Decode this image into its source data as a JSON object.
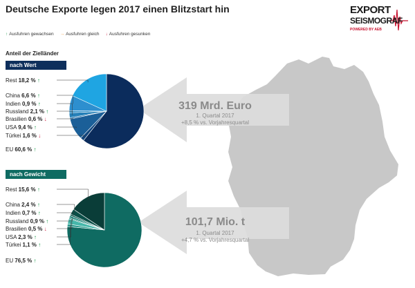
{
  "title": "Deutsche Exporte legen 2017 einen Blitzstart hin",
  "legend": [
    {
      "arrow": "↑",
      "kind": "up",
      "label": "Ausfuhren gewachsen"
    },
    {
      "arrow": "→",
      "kind": "flat",
      "label": "Ausfuhren gleich"
    },
    {
      "arrow": "↓",
      "kind": "down",
      "label": "Ausfuhren gesunken"
    }
  ],
  "section_title": "Anteil der Zielländer",
  "logo": {
    "line1": "EXPORT",
    "line2": "SEISMOGRAF",
    "line3": "POWERED BY AEB"
  },
  "colors": {
    "up": "#1a9a4a",
    "down": "#d0284a",
    "flat": "#f29a3a",
    "arrow": "#dcdcdc",
    "map": "#c8c8c8"
  },
  "chart_data": [
    {
      "type": "pie",
      "title": "nach Wert",
      "big_value": "319 Mrd. Euro",
      "period": "1. Quartal 2017",
      "change": "+8,5 % vs. Vorjahresquartal",
      "slices": [
        {
          "name": "EU",
          "value": 60.6,
          "display": "60,6 %",
          "trend": "up",
          "color": "#0b2c5c"
        },
        {
          "name": "Türkei",
          "value": 1.6,
          "display": "1,6 %",
          "trend": "down",
          "color": "#12457c"
        },
        {
          "name": "USA",
          "value": 9.4,
          "display": "9,4 %",
          "trend": "up",
          "color": "#1b5f98"
        },
        {
          "name": "Brasilien",
          "value": 0.6,
          "display": "0,6 %",
          "trend": "down",
          "color": "#1f6fa8"
        },
        {
          "name": "Russland",
          "value": 2.1,
          "display": "2,1 %",
          "trend": "up",
          "color": "#2580b8"
        },
        {
          "name": "Indien",
          "value": 0.9,
          "display": "0,9 %",
          "trend": "up",
          "color": "#3392c8"
        },
        {
          "name": "China",
          "value": 6.6,
          "display": "6,6 %",
          "trend": "up",
          "color": "#2d8fcf"
        },
        {
          "name": "Rest",
          "value": 18.2,
          "display": "18,2 %",
          "trend": "up",
          "color": "#1fa5e2"
        }
      ]
    },
    {
      "type": "pie",
      "title": "nach Gewicht",
      "big_value": "101,7 Mio. t",
      "period": "1. Quartal 2017",
      "change": "+4,7 % vs. Vorjahresquartal",
      "slices": [
        {
          "name": "EU",
          "value": 76.5,
          "display": "76,5 %",
          "trend": "up",
          "color": "#0f6b62"
        },
        {
          "name": "Türkei",
          "value": 1.1,
          "display": "1,1 %",
          "trend": "up",
          "color": "#2a9a8e"
        },
        {
          "name": "USA",
          "value": 2.3,
          "display": "2,3 %",
          "trend": "up",
          "color": "#46b7aa"
        },
        {
          "name": "Brasilien",
          "value": 0.5,
          "display": "0,5 %",
          "trend": "down",
          "color": "#178276"
        },
        {
          "name": "Russland",
          "value": 0.9,
          "display": "0,9 %",
          "trend": "up",
          "color": "#1d877c"
        },
        {
          "name": "Indien",
          "value": 0.7,
          "display": "0,7 %",
          "trend": "up",
          "color": "#0c5a52"
        },
        {
          "name": "China",
          "value": 2.4,
          "display": "2,4 %",
          "trend": "up",
          "color": "#0b4f48"
        },
        {
          "name": "Rest",
          "value": 15.6,
          "display": "15,6 %",
          "trend": "up",
          "color": "#0a3d38"
        }
      ]
    }
  ]
}
